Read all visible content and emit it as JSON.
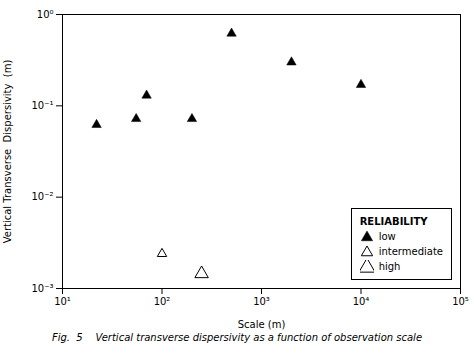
{
  "chart_data": {
    "type": "scatter",
    "xlabel": "Scale (m)",
    "ylabel": "Vertical Transverse  Dispersivity  (m)",
    "caption": "Fig.  5    Vertical transverse dispersivity as a function of observation scale",
    "legend_title": "RELIABILITY",
    "legend": "lower right",
    "log": true,
    "grid": false,
    "xlim": [
      10,
      100000
    ],
    "ylim": [
      0.001,
      1.0
    ],
    "xticks": [
      {
        "value": 10,
        "label": "10¹"
      },
      {
        "value": 100,
        "label": "10²"
      },
      {
        "value": 1000,
        "label": "10³"
      },
      {
        "value": 10000,
        "label": "10⁴"
      },
      {
        "value": 100000,
        "label": "10⁵"
      }
    ],
    "yticks": [
      {
        "value": 0.001,
        "label": "10⁻³"
      },
      {
        "value": 0.01,
        "label": "10⁻²"
      },
      {
        "value": 0.1,
        "label": "10⁻¹"
      },
      {
        "value": 1,
        "label": "10⁰"
      }
    ],
    "series": [
      {
        "name": "low",
        "color": "black",
        "marker": "triangle",
        "x": [
          22,
          55,
          70,
          200,
          500,
          2000,
          10000
        ],
        "values": [
          0.062,
          0.072,
          0.13,
          0.072,
          0.62,
          0.3,
          0.17
        ]
      },
      {
        "name": "intermediate",
        "color": "black",
        "marker": "triangle-open",
        "x": [
          100
        ],
        "values": [
          0.0024
        ]
      },
      {
        "name": "high",
        "color": "black",
        "marker": "triangle-open",
        "x": [
          250
        ],
        "values": [
          0.00145
        ]
      }
    ]
  }
}
